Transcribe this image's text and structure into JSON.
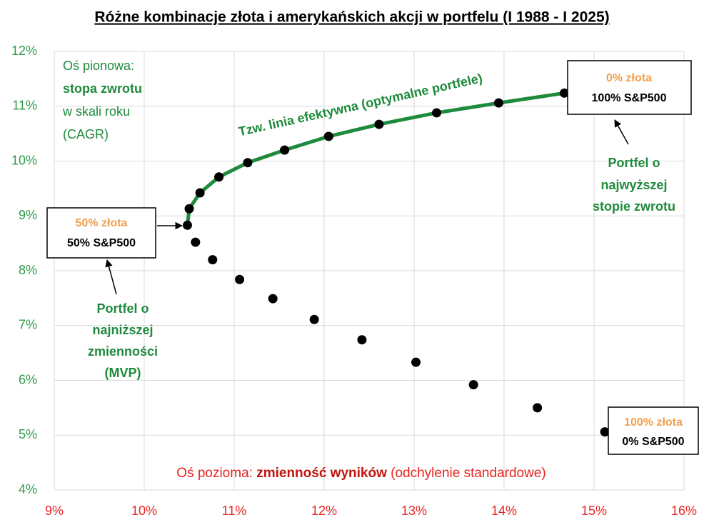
{
  "chart_data": {
    "type": "scatter",
    "title": "Różne kombinacje złota i amerykańskich akcji w portfelu (I 1988 - I 2025)",
    "y_axis_note": [
      "Oś pionowa:",
      "stopa zwrotu",
      "w skali roku",
      "(CAGR)"
    ],
    "x_axis_note": [
      "Oś pozioma: ",
      "zmienność wyników",
      " (odchylenie standardowe)"
    ],
    "curve_label": "Tzw. linia efektywna (optymalne portfele)",
    "boxes": [
      {
        "gold": "0% złota",
        "stocks": "100% S&P500"
      },
      {
        "gold": "50% złota",
        "stocks": "50% S&P500"
      },
      {
        "gold": "100% złota",
        "stocks": "0% S&P500"
      }
    ],
    "callouts": [
      [
        "Portfel o",
        "najwyższej",
        "stopie zwrotu"
      ],
      [
        "Portfel o",
        "najniższej",
        "zmienności",
        "(MVP)"
      ]
    ],
    "xlim": [
      9,
      16
    ],
    "ylim": [
      4,
      12
    ],
    "xticks": [
      {
        "value": 9,
        "label": "9%"
      },
      {
        "value": 10,
        "label": "10%"
      },
      {
        "value": 11,
        "label": "11%"
      },
      {
        "value": 12,
        "label": "12%"
      },
      {
        "value": 13,
        "label": "13%"
      },
      {
        "value": 14,
        "label": "14%"
      },
      {
        "value": 15,
        "label": "15%"
      },
      {
        "value": 16,
        "label": "16%"
      }
    ],
    "yticks": [
      {
        "value": 4,
        "label": "4%"
      },
      {
        "value": 5,
        "label": "5%"
      },
      {
        "value": 6,
        "label": "6%"
      },
      {
        "value": 7,
        "label": "7%"
      },
      {
        "value": 8,
        "label": "8%"
      },
      {
        "value": 9,
        "label": "9%"
      },
      {
        "value": 10,
        "label": "10%"
      },
      {
        "value": 11,
        "label": "11%"
      },
      {
        "value": 12,
        "label": "12%"
      }
    ],
    "grid": true,
    "marker_color": "#000000",
    "series": [
      {
        "color": "#1e8a3c",
        "line": true,
        "x": [
          14.67,
          13.94,
          13.25,
          12.61,
          12.05,
          11.56,
          11.15,
          10.83,
          10.62,
          10.5,
          10.48
        ],
        "y": [
          11.24,
          11.06,
          10.88,
          10.67,
          10.45,
          10.2,
          9.97,
          9.71,
          9.42,
          9.13,
          8.83
        ]
      },
      {
        "color": "#000000",
        "line": false,
        "x": [
          10.57,
          10.76,
          11.06,
          11.43,
          11.89,
          12.42,
          13.02,
          13.66,
          14.37,
          15.12
        ],
        "y": [
          8.52,
          8.2,
          7.84,
          7.49,
          7.11,
          6.74,
          6.33,
          5.92,
          5.5,
          5.06
        ]
      }
    ]
  }
}
